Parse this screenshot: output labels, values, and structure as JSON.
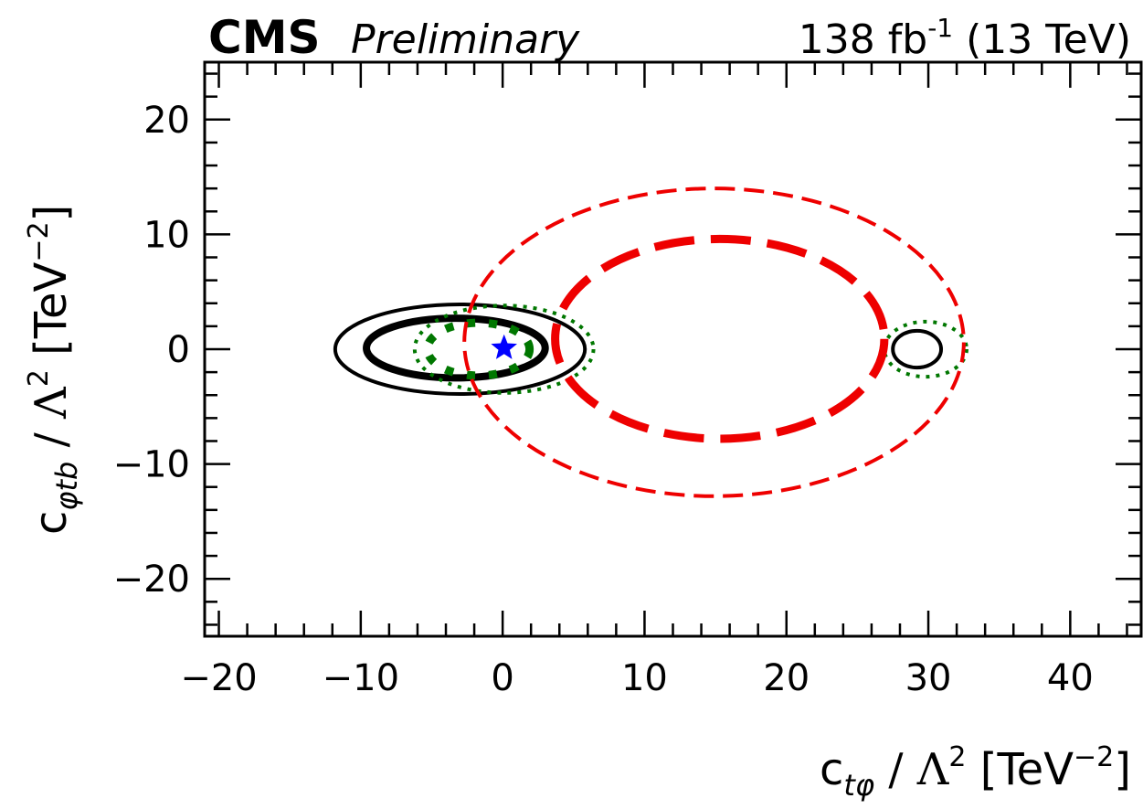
{
  "header": {
    "experiment": "CMS",
    "status": "Preliminary",
    "lumi_value": "138",
    "lumi_unit": "fb",
    "lumi_exp": "-1",
    "energy": "(13 TeV)"
  },
  "axes": {
    "xlabel_sym": "c",
    "xlabel_sub": "tφ",
    "xlabel_rest": " / Λ",
    "xlabel_pow": "2",
    "xlabel_unit": " [TeV",
    "xlabel_unit_exp": "−2",
    "xlabel_close": "]",
    "ylabel_sym": "c",
    "ylabel_sub": "φtb",
    "ylabel_rest": " / Λ",
    "ylabel_pow": "2",
    "ylabel_unit": " [TeV",
    "ylabel_unit_exp": "−2",
    "ylabel_close": "]"
  },
  "chart_data": {
    "type": "scatter",
    "xlim": [
      -21,
      45
    ],
    "ylim": [
      -25,
      25
    ],
    "x_ticks": [
      -20,
      -10,
      0,
      10,
      20,
      30,
      40
    ],
    "y_ticks": [
      -20,
      -10,
      0,
      10,
      20
    ],
    "x_tick_labels": [
      "−20",
      "−10",
      "0",
      "10",
      "20",
      "30",
      "40"
    ],
    "y_tick_labels": [
      "−20",
      "−10",
      "0",
      "10",
      "20"
    ],
    "x_minor_step": 2,
    "y_minor_step": 2,
    "grid": false,
    "legend": "none",
    "contours": [
      {
        "style": "solid",
        "color": "#000000",
        "weight": "thin",
        "cx": -3.0,
        "cy": 0.0,
        "rx": 8.8,
        "ry": 3.9
      },
      {
        "style": "solid",
        "color": "#000000",
        "weight": "thick",
        "cx": -3.3,
        "cy": 0.1,
        "rx": 6.3,
        "ry": 2.6
      },
      {
        "style": "solid",
        "color": "#000000",
        "weight": "thin",
        "cx": 29.2,
        "cy": 0.0,
        "rx": 1.7,
        "ry": 1.6
      },
      {
        "style": "dotted",
        "color": "#007700",
        "weight": "thin",
        "cx": 0.1,
        "cy": 0.0,
        "rx": 6.3,
        "ry": 3.8
      },
      {
        "style": "dotted",
        "color": "#007700",
        "weight": "thick",
        "cx": -1.7,
        "cy": 0.0,
        "rx": 3.6,
        "ry": 2.3
      },
      {
        "style": "dotted",
        "color": "#007700",
        "weight": "thin",
        "cx": 29.8,
        "cy": 0.0,
        "rx": 2.9,
        "ry": 2.4
      },
      {
        "style": "dashed",
        "color": "#ee0000",
        "weight": "thin",
        "cx": 14.9,
        "cy": 0.6,
        "rx": 17.6,
        "ry": 13.4
      },
      {
        "style": "dashed",
        "color": "#ee0000",
        "weight": "thick",
        "cx": 15.3,
        "cy": 0.9,
        "rx": 11.6,
        "ry": 8.7
      }
    ],
    "markers": [
      {
        "shape": "star",
        "color": "#0000ff",
        "x": 0.1,
        "y": 0.1
      }
    ]
  }
}
